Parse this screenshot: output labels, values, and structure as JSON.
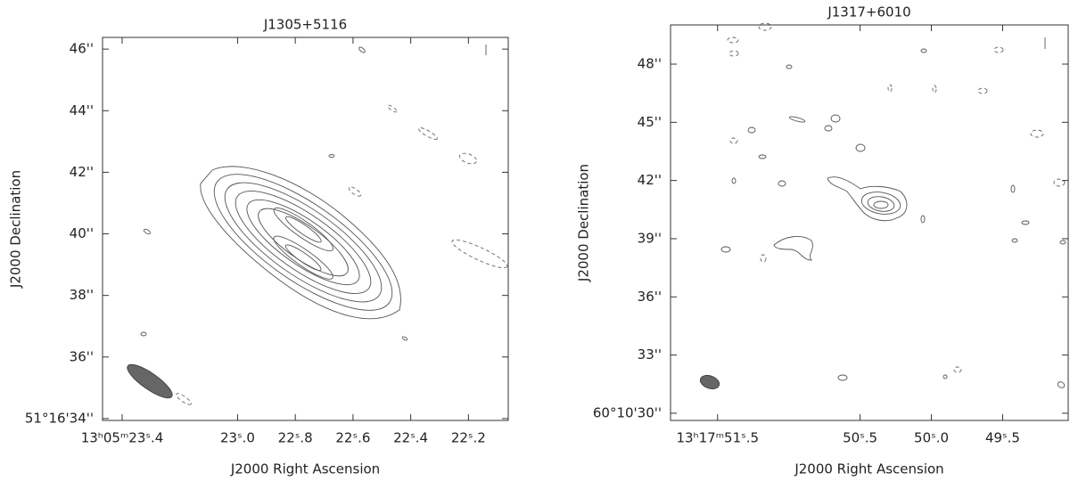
{
  "chart_data": [
    {
      "type": "contour",
      "title": "J1305+5116",
      "xlabel": "J2000 Right Ascension",
      "ylabel": "J2000 Declination",
      "xlim": [
        23.468,
        22.062
      ],
      "ylim": [
        33.94,
        46.38
      ],
      "xticks": [
        {
          "value": 23.4,
          "label": "13ʰ05ᵐ23ˢ.4"
        },
        {
          "value": 23.0,
          "label": "23ˢ.0"
        },
        {
          "value": 22.8,
          "label": "22ˢ.8"
        },
        {
          "value": 22.6,
          "label": "22ˢ.6"
        },
        {
          "value": 22.4,
          "label": "22ˢ.4"
        },
        {
          "value": 22.2,
          "label": "22ˢ.2"
        }
      ],
      "yticks": [
        {
          "value": 34,
          "label": "51°16'34''"
        },
        {
          "value": 36,
          "label": "36''"
        },
        {
          "value": 38,
          "label": "38''"
        },
        {
          "value": 40,
          "label": "40''"
        },
        {
          "value": 42,
          "label": "42''"
        },
        {
          "value": 44,
          "label": "44''"
        },
        {
          "value": 46,
          "label": "46''"
        }
      ]
    },
    {
      "type": "contour",
      "title": "J1317+6010",
      "xlabel": "J2000 Right Ascension",
      "ylabel": "J2000 Declination",
      "xlim": [
        51.83,
        49.04
      ],
      "ylim": [
        29.63,
        50.02
      ],
      "xticks": [
        {
          "value": 51.5,
          "label": "13ʰ17ᵐ51ˢ.5"
        },
        {
          "value": 50.5,
          "label": "50ˢ.5"
        },
        {
          "value": 50.0,
          "label": "50ˢ.0"
        },
        {
          "value": 49.5,
          "label": "49ˢ.5"
        }
      ],
      "yticks": [
        {
          "value": 30,
          "label": "60°10'30''"
        },
        {
          "value": 33,
          "label": "33''"
        },
        {
          "value": 36,
          "label": "36''"
        },
        {
          "value": 39,
          "label": "39''"
        },
        {
          "value": 42,
          "label": "42''"
        },
        {
          "value": 45,
          "label": "45''"
        },
        {
          "value": 48,
          "label": "48''"
        }
      ]
    }
  ]
}
